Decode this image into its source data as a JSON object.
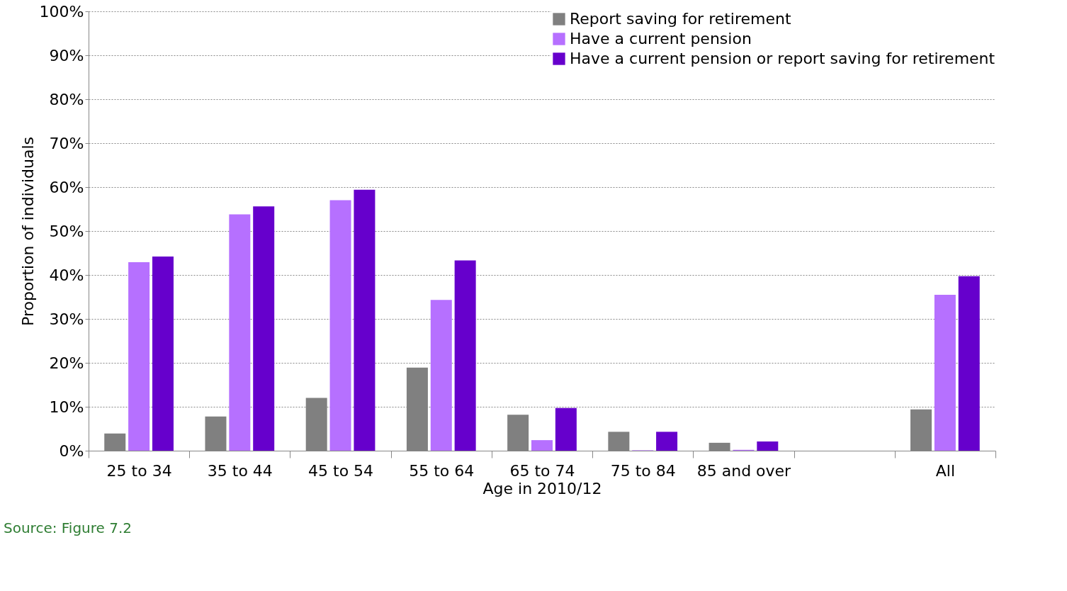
{
  "chart_data": {
    "type": "bar",
    "xlabel": "Age in 2010/12",
    "ylabel": "Proportion of individuals",
    "categories": [
      "25 to 34",
      "35 to 44",
      "45 to 54",
      "55 to 64",
      "65 to 74",
      "75 to 84",
      "85 and over",
      null,
      "All"
    ],
    "series": [
      {
        "name": "Report saving for retirement",
        "color": "#808080",
        "values": [
          3.9,
          7.8,
          12.0,
          18.9,
          8.2,
          4.3,
          1.8,
          null,
          9.4
        ]
      },
      {
        "name": "Have a current pension",
        "color": "#b670ff",
        "values": [
          42.9,
          53.8,
          57.0,
          34.3,
          2.4,
          0.1,
          0.2,
          null,
          35.5
        ]
      },
      {
        "name": "Have a current pension or report saving for retirement",
        "color": "#6600cc",
        "values": [
          44.2,
          55.6,
          59.4,
          43.3,
          9.7,
          4.3,
          2.1,
          null,
          39.7
        ]
      }
    ],
    "ylim": [
      0,
      100
    ],
    "yticks": [
      {
        "value": 0,
        "label": "0%"
      },
      {
        "value": 10,
        "label": "10%"
      },
      {
        "value": 20,
        "label": "20%"
      },
      {
        "value": 30,
        "label": "30%"
      },
      {
        "value": 40,
        "label": "40%"
      },
      {
        "value": 50,
        "label": "50%"
      },
      {
        "value": 60,
        "label": "60%"
      },
      {
        "value": 70,
        "label": "70%"
      },
      {
        "value": 80,
        "label": "80%"
      },
      {
        "value": 90,
        "label": "90%"
      },
      {
        "value": 100,
        "label": "100%"
      }
    ],
    "grid": "y",
    "legend": "top right",
    "annotations": [
      "Source: Figure 7.2"
    ]
  }
}
